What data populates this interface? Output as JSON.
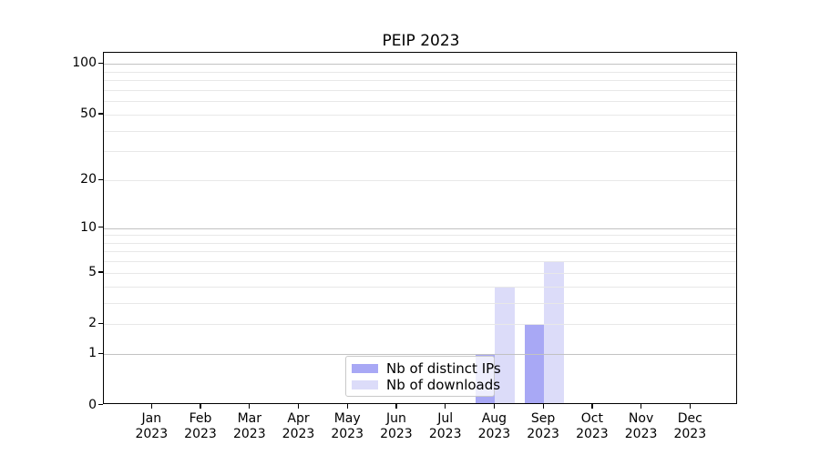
{
  "title": "PEIP 2023",
  "chart_data": {
    "type": "bar",
    "categories": [
      "Jan",
      "Feb",
      "Mar",
      "Apr",
      "May",
      "Jun",
      "Jul",
      "Aug",
      "Sep",
      "Oct",
      "Nov",
      "Dec"
    ],
    "category_year": "2023",
    "series": [
      {
        "name": "Nb of distinct IPs",
        "color": "#a8a8f5",
        "values": [
          0,
          0,
          0,
          0,
          0,
          0,
          0,
          1,
          2,
          0,
          0,
          0
        ]
      },
      {
        "name": "Nb of downloads",
        "color": "#dcdcf9",
        "values": [
          0,
          0,
          0,
          0,
          0,
          0,
          0,
          4,
          6,
          0,
          0,
          0
        ]
      }
    ],
    "title": "PEIP 2023",
    "xlabel": "",
    "ylabel": "",
    "yscale": "log-like (position proportional to ln(1+v))",
    "ylim": [
      0,
      115
    ],
    "ytick_labels": [
      0,
      1,
      2,
      5,
      10,
      20,
      50,
      100
    ],
    "major_gridline_values": [
      1,
      10,
      100
    ],
    "minor_gridline_values": [
      2,
      3,
      4,
      5,
      6,
      7,
      8,
      9,
      20,
      30,
      40,
      50,
      60,
      70,
      80,
      90
    ],
    "grid": "on, drawn above bars",
    "legend_position": "lower center inside plot",
    "legend_entries": [
      "Nb of distinct IPs",
      "Nb of downloads"
    ]
  },
  "colors": {
    "background": "#ffffff",
    "spine": "#000000",
    "major_grid": "#c2c2c2",
    "minor_grid": "#e8e8e8",
    "legend_border": "#c9c9c9"
  }
}
